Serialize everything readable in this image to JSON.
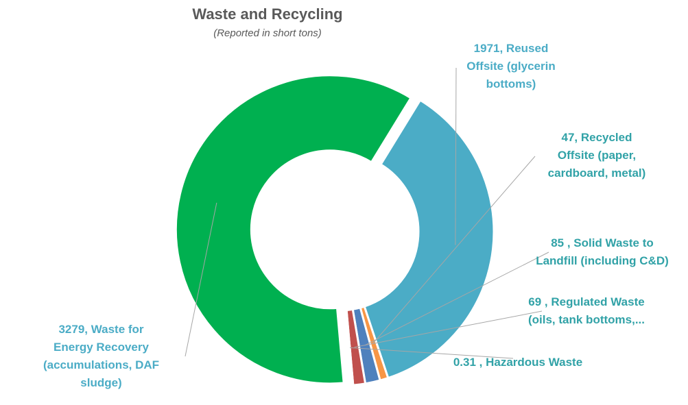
{
  "chart_data": {
    "type": "pie",
    "variant": "doughnut",
    "title": "Waste and Recycling",
    "subtitle": "(Reported in short tons)",
    "slices": [
      {
        "value": 1971,
        "label": "1971, Reused\nOffsite (glycerin\nbottoms)",
        "color": "#4BACC6",
        "label_color": "#4BACC6"
      },
      {
        "value": 47,
        "label": "47, Recycled\nOffsite (paper,\ncardboard, metal)",
        "color": "#F79646",
        "label_color": "#31A2A7"
      },
      {
        "value": 85,
        "label": "85 , Solid Waste to\nLandfill (including C&D)",
        "color": "#4F81BD",
        "label_color": "#31A2A7"
      },
      {
        "value": 69,
        "label": "69 , Regulated Waste\n(oils, tank bottoms,...",
        "color": "#C0504D",
        "label_color": "#31A2A7"
      },
      {
        "value": 0.31,
        "label": "0.31 , Hazardous Waste",
        "color": "#8064A2",
        "label_color": "#31A2A7"
      },
      {
        "value": 3279,
        "label": "3279,  Waste for\nEnergy Recovery\n(accumulations, DAF\nsludge)",
        "color": "#00B050",
        "label_color": "#4BACC6"
      }
    ]
  }
}
